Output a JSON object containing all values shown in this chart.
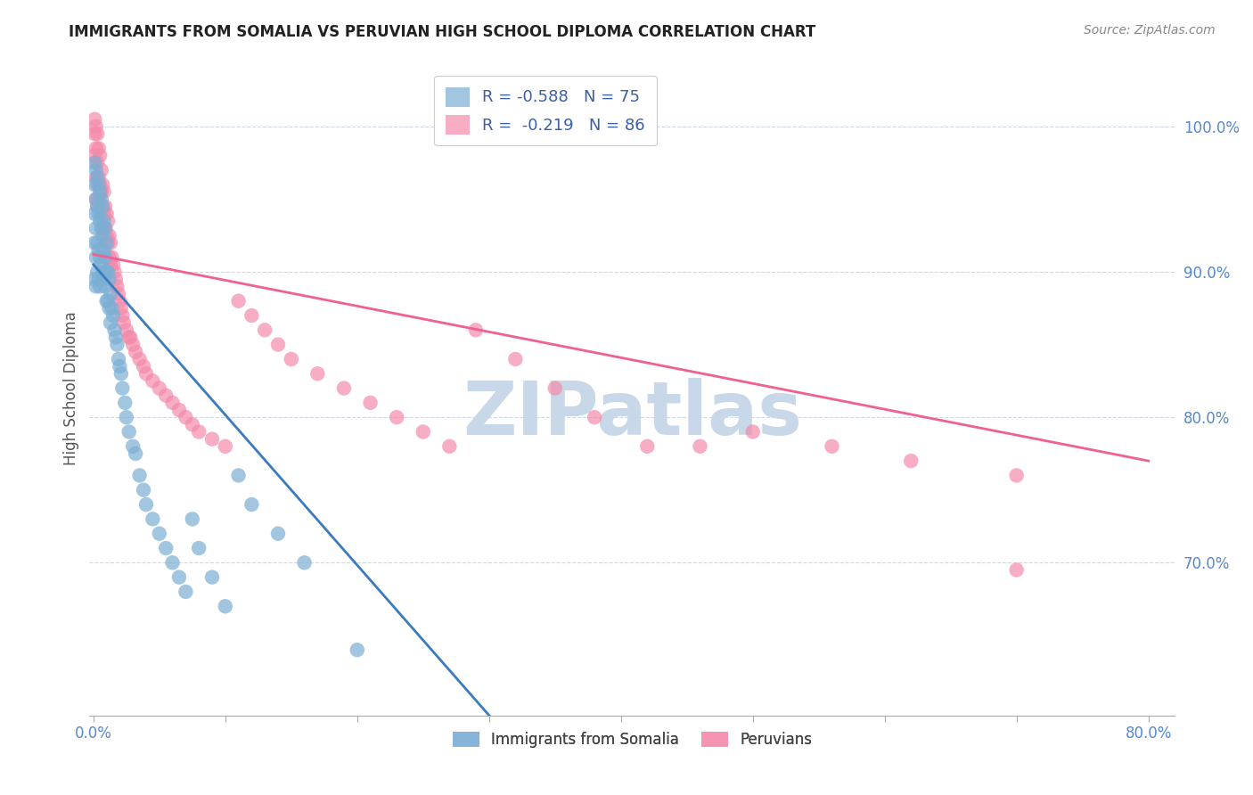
{
  "title": "IMMIGRANTS FROM SOMALIA VS PERUVIAN HIGH SCHOOL DIPLOMA CORRELATION CHART",
  "source": "Source: ZipAtlas.com",
  "ylabel": "High School Diploma",
  "ytick_labels": [
    "100.0%",
    "90.0%",
    "80.0%",
    "70.0%"
  ],
  "ytick_values": [
    1.0,
    0.9,
    0.8,
    0.7
  ],
  "xlim": [
    -0.003,
    0.82
  ],
  "ylim": [
    0.595,
    1.045
  ],
  "legend_entries": [
    {
      "label": "R = -0.588   N = 75"
    },
    {
      "label": "R =  -0.219   N = 86"
    }
  ],
  "legend_labels": [
    "Immigrants from Somalia",
    "Peruvians"
  ],
  "somalia_color": "#7bafd4",
  "peru_color": "#f48aaa",
  "somalia_line_color": "#3a7bbf",
  "peru_line_color": "#f06090",
  "watermark_color": "#c8d8e8",
  "somalia_scatter_x": [
    0.001,
    0.001,
    0.001,
    0.001,
    0.001,
    0.002,
    0.002,
    0.002,
    0.002,
    0.002,
    0.003,
    0.003,
    0.003,
    0.003,
    0.004,
    0.004,
    0.004,
    0.004,
    0.005,
    0.005,
    0.005,
    0.005,
    0.006,
    0.006,
    0.006,
    0.007,
    0.007,
    0.007,
    0.008,
    0.008,
    0.008,
    0.009,
    0.009,
    0.009,
    0.01,
    0.01,
    0.01,
    0.011,
    0.011,
    0.012,
    0.012,
    0.013,
    0.013,
    0.014,
    0.015,
    0.016,
    0.017,
    0.018,
    0.019,
    0.02,
    0.021,
    0.022,
    0.024,
    0.025,
    0.027,
    0.03,
    0.032,
    0.035,
    0.038,
    0.04,
    0.045,
    0.05,
    0.055,
    0.06,
    0.065,
    0.07,
    0.075,
    0.08,
    0.09,
    0.1,
    0.11,
    0.12,
    0.14,
    0.16,
    0.2
  ],
  "somalia_scatter_y": [
    0.975,
    0.96,
    0.94,
    0.92,
    0.895,
    0.97,
    0.95,
    0.93,
    0.91,
    0.89,
    0.965,
    0.945,
    0.92,
    0.9,
    0.96,
    0.94,
    0.915,
    0.895,
    0.955,
    0.935,
    0.91,
    0.89,
    0.95,
    0.93,
    0.905,
    0.945,
    0.925,
    0.9,
    0.935,
    0.915,
    0.895,
    0.93,
    0.91,
    0.89,
    0.92,
    0.9,
    0.88,
    0.9,
    0.88,
    0.895,
    0.875,
    0.885,
    0.865,
    0.875,
    0.87,
    0.86,
    0.855,
    0.85,
    0.84,
    0.835,
    0.83,
    0.82,
    0.81,
    0.8,
    0.79,
    0.78,
    0.775,
    0.76,
    0.75,
    0.74,
    0.73,
    0.72,
    0.71,
    0.7,
    0.69,
    0.68,
    0.73,
    0.71,
    0.69,
    0.67,
    0.76,
    0.74,
    0.72,
    0.7,
    0.64
  ],
  "peru_scatter_x": [
    0.001,
    0.001,
    0.001,
    0.002,
    0.002,
    0.002,
    0.002,
    0.003,
    0.003,
    0.003,
    0.003,
    0.004,
    0.004,
    0.004,
    0.005,
    0.005,
    0.005,
    0.006,
    0.006,
    0.006,
    0.007,
    0.007,
    0.007,
    0.008,
    0.008,
    0.008,
    0.009,
    0.009,
    0.01,
    0.01,
    0.011,
    0.011,
    0.012,
    0.012,
    0.013,
    0.013,
    0.014,
    0.015,
    0.016,
    0.017,
    0.018,
    0.019,
    0.02,
    0.021,
    0.022,
    0.023,
    0.025,
    0.027,
    0.028,
    0.03,
    0.032,
    0.035,
    0.038,
    0.04,
    0.045,
    0.05,
    0.055,
    0.06,
    0.065,
    0.07,
    0.075,
    0.08,
    0.09,
    0.1,
    0.11,
    0.12,
    0.13,
    0.14,
    0.15,
    0.17,
    0.19,
    0.21,
    0.23,
    0.25,
    0.27,
    0.29,
    0.32,
    0.35,
    0.38,
    0.42,
    0.46,
    0.5,
    0.56,
    0.62,
    0.7,
    0.7
  ],
  "peru_scatter_y": [
    1.005,
    0.995,
    0.98,
    1.0,
    0.985,
    0.965,
    0.95,
    0.995,
    0.975,
    0.96,
    0.945,
    0.985,
    0.965,
    0.95,
    0.98,
    0.96,
    0.945,
    0.97,
    0.955,
    0.94,
    0.96,
    0.945,
    0.93,
    0.955,
    0.94,
    0.925,
    0.945,
    0.93,
    0.94,
    0.925,
    0.935,
    0.92,
    0.925,
    0.91,
    0.92,
    0.905,
    0.91,
    0.905,
    0.9,
    0.895,
    0.89,
    0.885,
    0.88,
    0.875,
    0.87,
    0.865,
    0.86,
    0.855,
    0.855,
    0.85,
    0.845,
    0.84,
    0.835,
    0.83,
    0.825,
    0.82,
    0.815,
    0.81,
    0.805,
    0.8,
    0.795,
    0.79,
    0.785,
    0.78,
    0.88,
    0.87,
    0.86,
    0.85,
    0.84,
    0.83,
    0.82,
    0.81,
    0.8,
    0.79,
    0.78,
    0.86,
    0.84,
    0.82,
    0.8,
    0.78,
    0.78,
    0.79,
    0.78,
    0.77,
    0.76,
    0.695
  ],
  "somalia_line": {
    "x0": 0.0,
    "x1": 0.3,
    "y0": 0.905,
    "y1": 0.595
  },
  "peru_line": {
    "x0": 0.0,
    "x1": 0.8,
    "y0": 0.912,
    "y1": 0.77
  }
}
